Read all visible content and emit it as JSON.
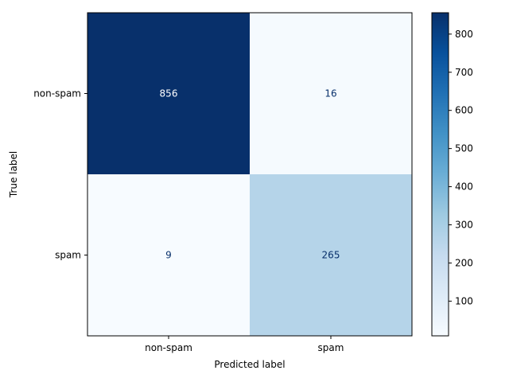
{
  "chart_data": {
    "type": "heatmap",
    "title": "",
    "xlabel": "Predicted label",
    "ylabel": "True label",
    "x_categories": [
      "non-spam",
      "spam"
    ],
    "y_categories": [
      "non-spam",
      "spam"
    ],
    "values": [
      [
        856,
        16
      ],
      [
        9,
        265
      ]
    ],
    "colormap": "Blues",
    "colorbar": {
      "min": 9,
      "max": 856,
      "ticks": [
        100,
        200,
        300,
        400,
        500,
        600,
        700,
        800
      ]
    },
    "grid": false
  },
  "colors": {
    "text_dark_cell": "#ffffff",
    "text_light_cell": "#08306b",
    "axis": "#000000"
  }
}
